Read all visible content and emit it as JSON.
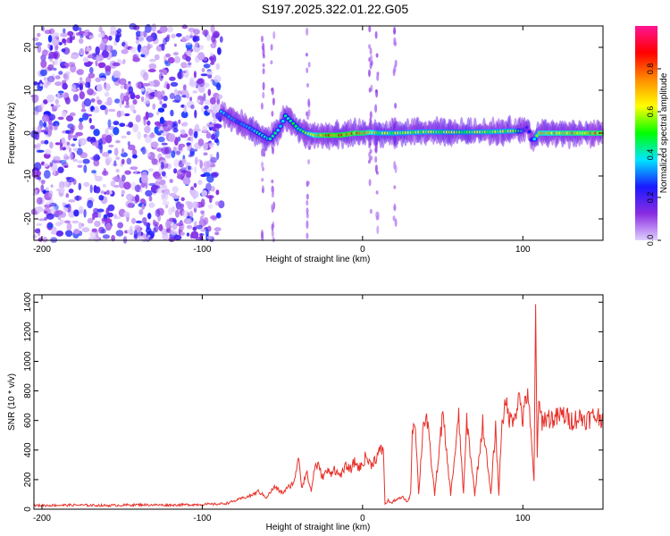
{
  "title": "S197.2025.322.01.22.G05",
  "chart_data": [
    {
      "type": "heatmap",
      "xlabel": "Height of straight line (km)",
      "ylabel": "Frequency (Hz)",
      "xlim": [
        -205,
        150
      ],
      "ylim": [
        -25,
        25
      ],
      "xticks": [
        -200,
        -100,
        0,
        100
      ],
      "yticks": [
        -20,
        -10,
        0,
        10,
        20
      ],
      "colorbar": {
        "label": "Normalized spectral amplitude",
        "range": [
          0.0,
          1.0
        ],
        "ticks": [
          "0.0",
          "0.2",
          "0.4",
          "0.6",
          "0.8"
        ],
        "tick_values": [
          0.0,
          0.2,
          0.4,
          0.6,
          0.8
        ],
        "colors": [
          "#e0d0ff",
          "#8a2be2",
          "#1a1aff",
          "#00e5ff",
          "#00ff00",
          "#ffff00",
          "#ff8c00",
          "#ff0000",
          "#ff1493"
        ]
      },
      "noise_region_x": [
        -205,
        -88
      ],
      "ridge": {
        "x": [
          -88,
          -80,
          -72,
          -65,
          -58,
          -52,
          -48,
          -44,
          -40,
          -35,
          -30,
          -25,
          -20,
          -15,
          -10,
          -5,
          0,
          5,
          10,
          20,
          40,
          60,
          80,
          95,
          100,
          103,
          106,
          110,
          150
        ],
        "freq": [
          5,
          3,
          1.5,
          0,
          -1.5,
          1,
          4,
          2.5,
          1,
          0,
          -0.5,
          -0.5,
          -0.5,
          -0.5,
          -0.3,
          0,
          0,
          0.2,
          0,
          0,
          0.3,
          0.2,
          0.3,
          0.5,
          0.5,
          1.5,
          -2,
          0,
          0
        ],
        "amplitude": [
          0.35,
          0.3,
          0.35,
          0.4,
          0.4,
          0.4,
          0.45,
          0.45,
          0.5,
          0.55,
          0.7,
          0.8,
          0.85,
          0.85,
          0.85,
          0.8,
          0.8,
          0.7,
          0.6,
          0.6,
          0.6,
          0.55,
          0.6,
          0.6,
          0.3,
          0.2,
          0.3,
          0.7,
          0.8
        ]
      }
    },
    {
      "type": "line",
      "xlabel": "Height of straight line (km)",
      "ylabel": "SNR (10 * v/v)",
      "xlim": [
        -205,
        150
      ],
      "ylim": [
        0,
        1450
      ],
      "xticks": [
        -200,
        -100,
        0,
        100
      ],
      "yticks": [
        0,
        200,
        400,
        600,
        800,
        1000,
        1200,
        1400
      ],
      "series": [
        {
          "name": "SNR",
          "color": "#e8312a",
          "x": [
            -205,
            -180,
            -160,
            -140,
            -120,
            -100,
            -90,
            -85,
            -80,
            -75,
            -70,
            -65,
            -60,
            -55,
            -50,
            -45,
            -42,
            -40,
            -38,
            -35,
            -32,
            -30,
            -28,
            -25,
            -22,
            -20,
            -18,
            -15,
            -12,
            -10,
            -8,
            -5,
            -2,
            0,
            2,
            5,
            8,
            10,
            12,
            13,
            14,
            16,
            18,
            20,
            25,
            28,
            30,
            31,
            33,
            35,
            38,
            40,
            45,
            50,
            55,
            60,
            63,
            65,
            70,
            75,
            80,
            83,
            85,
            87,
            90,
            92,
            95,
            98,
            100,
            103,
            105,
            107,
            108,
            109,
            110,
            112,
            115,
            120,
            125,
            130,
            135,
            140,
            145,
            150
          ],
          "y": [
            25,
            28,
            25,
            30,
            28,
            32,
            35,
            40,
            55,
            75,
            90,
            120,
            80,
            150,
            110,
            160,
            200,
            380,
            150,
            250,
            120,
            280,
            300,
            220,
            260,
            240,
            280,
            230,
            250,
            300,
            260,
            320,
            280,
            300,
            360,
            300,
            340,
            380,
            400,
            420,
            30,
            60,
            40,
            60,
            80,
            50,
            100,
            560,
            580,
            100,
            600,
            620,
            100,
            640,
            100,
            620,
            100,
            600,
            100,
            580,
            100,
            560,
            100,
            620,
            700,
            600,
            650,
            760,
            600,
            820,
            500,
            180,
            1430,
            350,
            700,
            600,
            620,
            610,
            640,
            600,
            620,
            610,
            630,
            620
          ]
        }
      ]
    }
  ]
}
